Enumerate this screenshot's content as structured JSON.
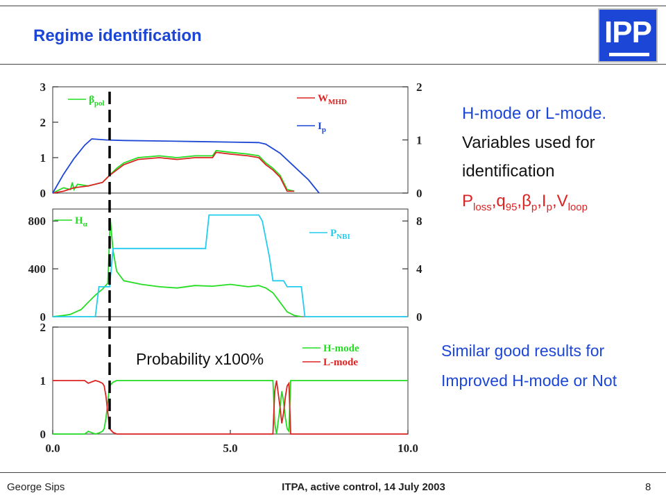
{
  "slide": {
    "title": "Regime identification",
    "logo_text": "IPP",
    "right_lines": [
      "H-mode or L-mode.",
      "Variables used for",
      "identification"
    ],
    "variables": [
      {
        "main": "P",
        "sub": "loss"
      },
      {
        "main": "q",
        "sub": "95"
      },
      {
        "main": "β",
        "sub": "p"
      },
      {
        "main": "I",
        "sub": "p"
      },
      {
        "main": "V",
        "sub": "loop"
      }
    ],
    "similar_lines": [
      "Similar good results for",
      "Improved H-mode or Not"
    ],
    "probability_label": "Probability x100%",
    "footer": {
      "left": "George Sips",
      "center": "ITPA, active control, 14 July 2003",
      "right": "8"
    }
  },
  "chart_data": [
    {
      "type": "line",
      "xlim": [
        0,
        10
      ],
      "ylim": [
        0,
        3
      ],
      "y2lim": [
        0,
        2
      ],
      "yticks": [
        "0",
        "1",
        "2",
        "3"
      ],
      "y2ticks": [
        "0",
        "1",
        "2"
      ],
      "series": [
        {
          "name": "β",
          "name_sub": "pol",
          "color": "#22dd22",
          "axis": "left",
          "x": [
            0,
            0.3,
            0.5,
            0.55,
            0.6,
            0.7,
            1.0,
            1.4,
            1.6,
            1.8,
            2.0,
            2.4,
            3.0,
            3.5,
            4.0,
            4.5,
            4.6,
            5.0,
            5.5,
            5.8,
            6.0,
            6.2,
            6.4,
            6.5,
            6.6,
            6.8
          ],
          "y": [
            0,
            0.15,
            0.1,
            0.3,
            0.1,
            0.25,
            0.2,
            0.3,
            0.5,
            0.7,
            0.85,
            1.0,
            1.05,
            1.0,
            1.05,
            1.05,
            1.2,
            1.15,
            1.1,
            1.05,
            0.85,
            0.7,
            0.5,
            0.3,
            0.1,
            0.05
          ]
        },
        {
          "name": "W",
          "name_sub": "MHD",
          "color": "#dd2222",
          "axis": "left",
          "x": [
            0,
            0.3,
            0.6,
            1.0,
            1.4,
            1.6,
            1.8,
            2.0,
            2.4,
            3.0,
            3.5,
            4.0,
            4.5,
            4.6,
            5.0,
            5.5,
            5.8,
            6.0,
            6.2,
            6.4,
            6.5,
            6.6,
            6.8
          ],
          "y": [
            0,
            0.05,
            0.15,
            0.2,
            0.3,
            0.5,
            0.65,
            0.8,
            0.95,
            1.0,
            0.95,
            1.0,
            1.0,
            1.15,
            1.1,
            1.05,
            1.0,
            0.8,
            0.65,
            0.45,
            0.25,
            0.05,
            0.05
          ]
        },
        {
          "name": "I",
          "name_sub": "p",
          "color": "#1b46d6",
          "axis": "right",
          "x": [
            0,
            0.3,
            0.6,
            0.9,
            1.1,
            1.5,
            2.0,
            3.0,
            4.0,
            5.0,
            5.8,
            6.0,
            6.4,
            6.8,
            7.2,
            7.5
          ],
          "y": [
            0,
            0.35,
            0.65,
            0.9,
            1.02,
            1.0,
            0.99,
            0.98,
            0.97,
            0.96,
            0.95,
            0.92,
            0.75,
            0.5,
            0.25,
            0
          ]
        }
      ]
    },
    {
      "type": "line",
      "xlim": [
        0,
        10
      ],
      "ylim": [
        0,
        900
      ],
      "y2lim": [
        0,
        9
      ],
      "yticks": [
        "0",
        "400",
        "800"
      ],
      "y2ticks": [
        "0",
        "4",
        "8"
      ],
      "series": [
        {
          "name": "H",
          "name_sub": "α",
          "color": "#22dd22",
          "axis": "left",
          "x": [
            0,
            0.3,
            0.5,
            0.8,
            1.0,
            1.2,
            1.4,
            1.55,
            1.62,
            1.7,
            1.8,
            2.0,
            2.5,
            3.0,
            3.5,
            4.0,
            4.5,
            5.0,
            5.5,
            5.8,
            6.0,
            6.2,
            6.4,
            6.6,
            6.8,
            7.0
          ],
          "y": [
            0,
            10,
            20,
            60,
            120,
            180,
            230,
            280,
            820,
            550,
            380,
            300,
            270,
            250,
            240,
            260,
            255,
            270,
            250,
            260,
            240,
            200,
            120,
            40,
            10,
            0
          ]
        },
        {
          "name": "P",
          "name_sub": "NBI",
          "color": "#22ccee",
          "axis": "right",
          "x": [
            0,
            1.2,
            1.3,
            1.6,
            1.7,
            4.3,
            4.4,
            5.8,
            5.9,
            6.1,
            6.2,
            6.5,
            6.6,
            6.7,
            7.0,
            7.1,
            10
          ],
          "y": [
            0,
            0,
            2.5,
            2.5,
            5.7,
            5.7,
            8.5,
            8.5,
            8,
            5,
            3,
            3,
            2.5,
            2.5,
            2.5,
            0,
            0
          ]
        }
      ]
    },
    {
      "type": "line",
      "xlim": [
        0,
        10
      ],
      "ylim": [
        0,
        2
      ],
      "yticks": [
        "0",
        "1",
        "2"
      ],
      "xticks": [
        "0.0",
        "5.0",
        "10.0"
      ],
      "series": [
        {
          "name": "H-mode",
          "color": "#22dd22",
          "axis": "left",
          "x": [
            0,
            0.9,
            1.0,
            1.2,
            1.3,
            1.4,
            1.45,
            1.5,
            1.55,
            1.6,
            1.7,
            1.8,
            6.2,
            6.25,
            6.3,
            6.4,
            6.45,
            6.5,
            6.55,
            6.6,
            6.65,
            6.7,
            10
          ],
          "y": [
            0,
            0,
            0.05,
            0,
            0.02,
            0.05,
            0.1,
            0.3,
            0.6,
            0.9,
            0.97,
            1.0,
            1.0,
            0.2,
            0,
            0.5,
            0.8,
            0.6,
            0.3,
            0.1,
            0.05,
            1.0,
            1.0
          ]
        },
        {
          "name": "L-mode",
          "color": "#dd2222",
          "axis": "left",
          "x": [
            0,
            0.9,
            1.0,
            1.2,
            1.3,
            1.4,
            1.45,
            1.5,
            1.55,
            1.6,
            1.7,
            1.8,
            6.2,
            6.25,
            6.3,
            6.4,
            6.45,
            6.5,
            6.55,
            6.6,
            6.65,
            6.7,
            10
          ],
          "y": [
            1,
            1,
            0.95,
            1.0,
            0.98,
            0.95,
            0.9,
            0.7,
            0.4,
            0.1,
            0.03,
            0,
            0,
            0.8,
            1.0,
            0.5,
            0.2,
            0.4,
            0.7,
            0.9,
            0.95,
            0,
            0
          ]
        }
      ]
    }
  ]
}
